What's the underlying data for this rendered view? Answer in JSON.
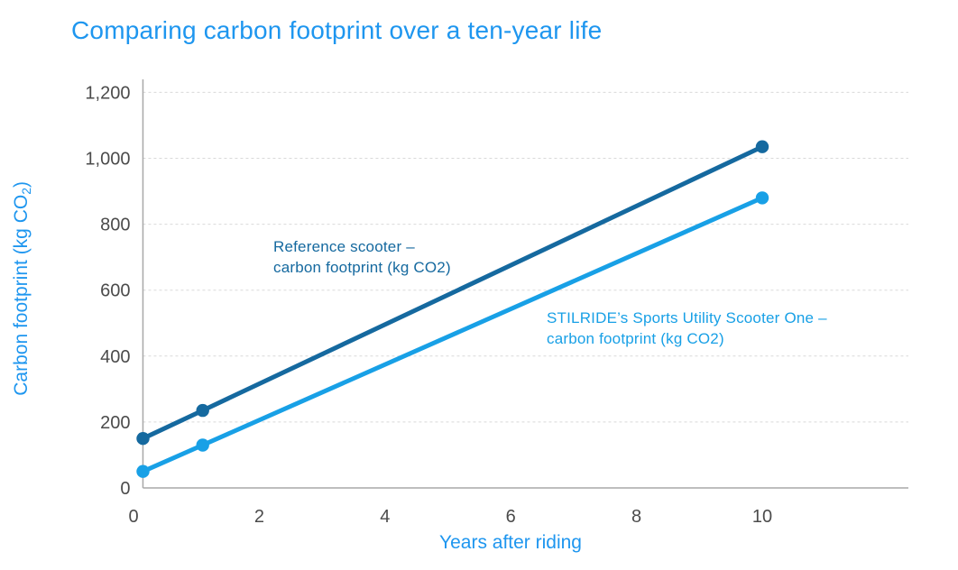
{
  "theme": {
    "accent_blue": "#1E96EF",
    "reference_blue": "#15699F",
    "stilride_blue": "#18A0E6",
    "tick_gray": "#4B4B4B",
    "grid_gray": "#D9D9D9",
    "axis_gray": "#A8A8A8",
    "background": "#FFFFFF"
  },
  "chart_data": {
    "type": "line",
    "title": "Comparing carbon footprint over a ten-year life",
    "xlabel": "Years after riding",
    "ylabel": "Carbon footprint (kg CO2)",
    "ylabel_main": "Carbon footprint (kg CO",
    "ylabel_sub": "2",
    "ylabel_close": ")",
    "x_ticks": [
      0,
      2,
      4,
      6,
      8,
      10
    ],
    "y_ticks": [
      0,
      200,
      400,
      600,
      800,
      1000,
      1200
    ],
    "y_tick_labels": [
      "0",
      "200",
      "400",
      "600",
      "800",
      "1,000",
      "1,200"
    ],
    "xlim": [
      0.15,
      12.3
    ],
    "ylim": [
      0,
      1240
    ],
    "grid": "horizontal-dashed",
    "legend": "inline-annotations",
    "series": [
      {
        "name": "Reference scooter – carbon footprint (kg CO2)",
        "label_line1": "Reference scooter –",
        "label_line2": "carbon footprint (kg CO2)",
        "color": "#15699F",
        "points": [
          [
            0.15,
            150
          ],
          [
            1.1,
            235
          ],
          [
            10,
            1035
          ]
        ]
      },
      {
        "name": "STILRIDE’s Sports Utility Scooter One – carbon footprint (kg CO2)",
        "label_line1": "STILRIDE’s Sports Utility Scooter One –",
        "label_line2": "carbon footprint (kg CO2)",
        "color": "#18A0E6",
        "points": [
          [
            0.15,
            50
          ],
          [
            1.1,
            130
          ],
          [
            10,
            880
          ]
        ]
      }
    ]
  }
}
